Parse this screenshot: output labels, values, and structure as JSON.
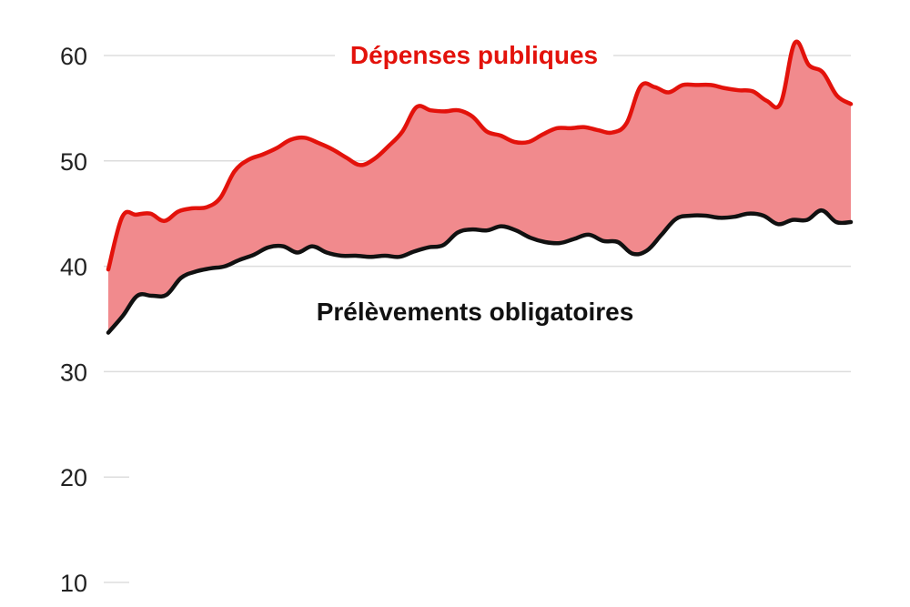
{
  "chart_data": {
    "type": "area",
    "title": "",
    "xlabel": "",
    "ylabel": "",
    "ylim": [
      10,
      62
    ],
    "yticks": [
      10,
      20,
      30,
      40,
      50,
      60
    ],
    "grid": true,
    "series_label_placement": "inline",
    "colors": {
      "depenses_line": "#e3120b",
      "fill": "#f18a8d",
      "prelevements_line": "#111111",
      "grid": "#dddddd"
    },
    "series": [
      {
        "name": "Dépenses publiques",
        "values": [
          39.7,
          44.7,
          44.9,
          45.0,
          44.3,
          45.2,
          45.5,
          45.6,
          46.5,
          49.0,
          50.1,
          50.6,
          51.2,
          52.0,
          52.2,
          51.7,
          51.1,
          50.3,
          49.6,
          50.2,
          51.4,
          52.8,
          55.1,
          54.8,
          54.7,
          54.8,
          54.2,
          52.8,
          52.4,
          51.8,
          51.8,
          52.5,
          53.1,
          53.1,
          53.2,
          52.9,
          52.7,
          53.6,
          57.1,
          57.0,
          56.5,
          57.2,
          57.2,
          57.2,
          56.9,
          56.7,
          56.6,
          55.7,
          55.5,
          61.2,
          59.1,
          58.4,
          56.2,
          55.4
        ]
      },
      {
        "name": "Prélèvements obligatoires",
        "values": [
          33.7,
          35.3,
          37.2,
          37.2,
          37.3,
          38.9,
          39.5,
          39.8,
          40.0,
          40.6,
          41.1,
          41.8,
          41.9,
          41.3,
          41.9,
          41.3,
          41.0,
          41.0,
          40.9,
          41.0,
          40.9,
          41.4,
          41.8,
          42.0,
          43.2,
          43.5,
          43.4,
          43.8,
          43.4,
          42.7,
          42.3,
          42.2,
          42.6,
          43.0,
          42.4,
          42.3,
          41.2,
          41.5,
          43.0,
          44.5,
          44.8,
          44.8,
          44.6,
          44.7,
          45.0,
          44.8,
          44.0,
          44.4,
          44.4,
          45.3,
          44.2,
          44.2
        ]
      }
    ]
  }
}
